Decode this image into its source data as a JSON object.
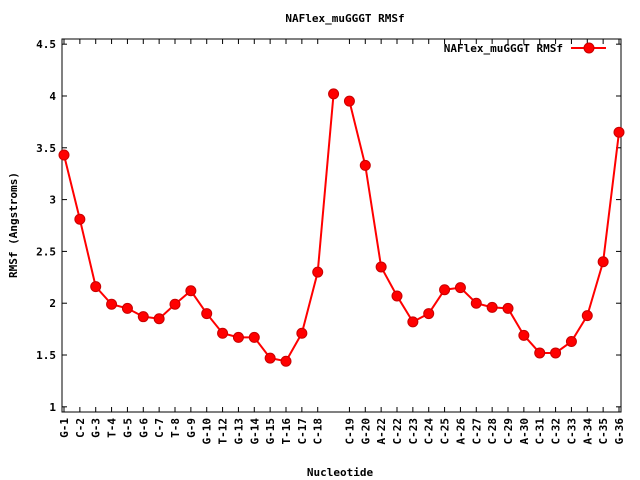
{
  "chart_data": {
    "type": "line",
    "title": "NAFlex_muGGGT RMSf",
    "xlabel": "Nucleotide",
    "ylabel": "RMSf (Angstroms)",
    "ylim": [
      0.95,
      4.55
    ],
    "yticks": [
      1,
      1.5,
      2,
      2.5,
      3,
      3.5,
      4,
      4.5
    ],
    "ytick_labels": [
      "1",
      "1.5",
      "2",
      "2.5",
      "3",
      "3.5",
      "4",
      "4.5"
    ],
    "categories": [
      "G-1",
      "C-2",
      "G-3",
      "T-4",
      "G-5",
      "G-6",
      "C-7",
      "T-8",
      "G-9",
      "G-10",
      "T-12",
      "G-13",
      "G-14",
      "G-15",
      "T-16",
      "C-17",
      "C-18",
      "C-19",
      "G-20",
      "A-22",
      "C-22",
      "C-23",
      "C-24",
      "C-25",
      "A-26",
      "C-27",
      "C-28",
      "C-29",
      "A-30",
      "C-31",
      "C-32",
      "C-33",
      "A-34",
      "C-35",
      "G-36"
    ],
    "tick_labels": [
      "G-1",
      "C-2",
      "G-3",
      "T-4",
      "G-5",
      "G-6",
      "C-7",
      "T-8",
      "G-9",
      "G-10",
      "T-12",
      "G-13",
      "G-14",
      "G-15",
      "T-16",
      "C-17",
      "C-18",
      "C-19",
      "G-20",
      "A-22",
      "C-22",
      "C-23",
      "C-24",
      "C-25",
      "A-26",
      "C-27",
      "C-28",
      "C-29",
      "A-30",
      "C-31",
      "C-32",
      "C-33",
      "A-34",
      "C-35",
      "G-36"
    ],
    "tick_positions": [
      1,
      2,
      3,
      4,
      5,
      6,
      7,
      8,
      9,
      10,
      11,
      12,
      13,
      14,
      15,
      16,
      17,
      19,
      20,
      21,
      22,
      23,
      24,
      25,
      26,
      27,
      28,
      29,
      30,
      31,
      32,
      33,
      34,
      35,
      36
    ],
    "xlim": [
      1,
      36
    ],
    "series": [
      {
        "name": "NAFlex_muGGGT RMSf",
        "color": "#ff0000",
        "segments": [
          {
            "x": [
              1,
              2,
              3,
              4,
              5,
              6,
              7,
              8,
              9,
              10,
              11,
              12,
              13,
              14,
              15,
              16,
              17
            ],
            "y": [
              3.43,
              2.81,
              2.16,
              1.99,
              1.95,
              1.87,
              1.85,
              1.99,
              2.12,
              1.9,
              1.71,
              1.67,
              1.67,
              1.47,
              1.44,
              1.71,
              2.3
            ]
          },
          {
            "x": [
              17,
              18
            ],
            "y": [
              2.3,
              4.02
            ]
          },
          {
            "x": [
              19,
              20,
              21,
              22,
              23,
              24,
              25,
              26,
              27,
              28,
              29,
              30,
              31,
              32,
              33,
              34,
              35,
              36
            ],
            "y": [
              3.95,
              3.33,
              2.35,
              2.07,
              1.82,
              1.9,
              2.13,
              2.15,
              2.0,
              1.96,
              1.95,
              1.69,
              1.52,
              1.52,
              1.63,
              1.88,
              2.4,
              3.65
            ]
          }
        ]
      }
    ],
    "legend": "top-right",
    "grid": false
  }
}
